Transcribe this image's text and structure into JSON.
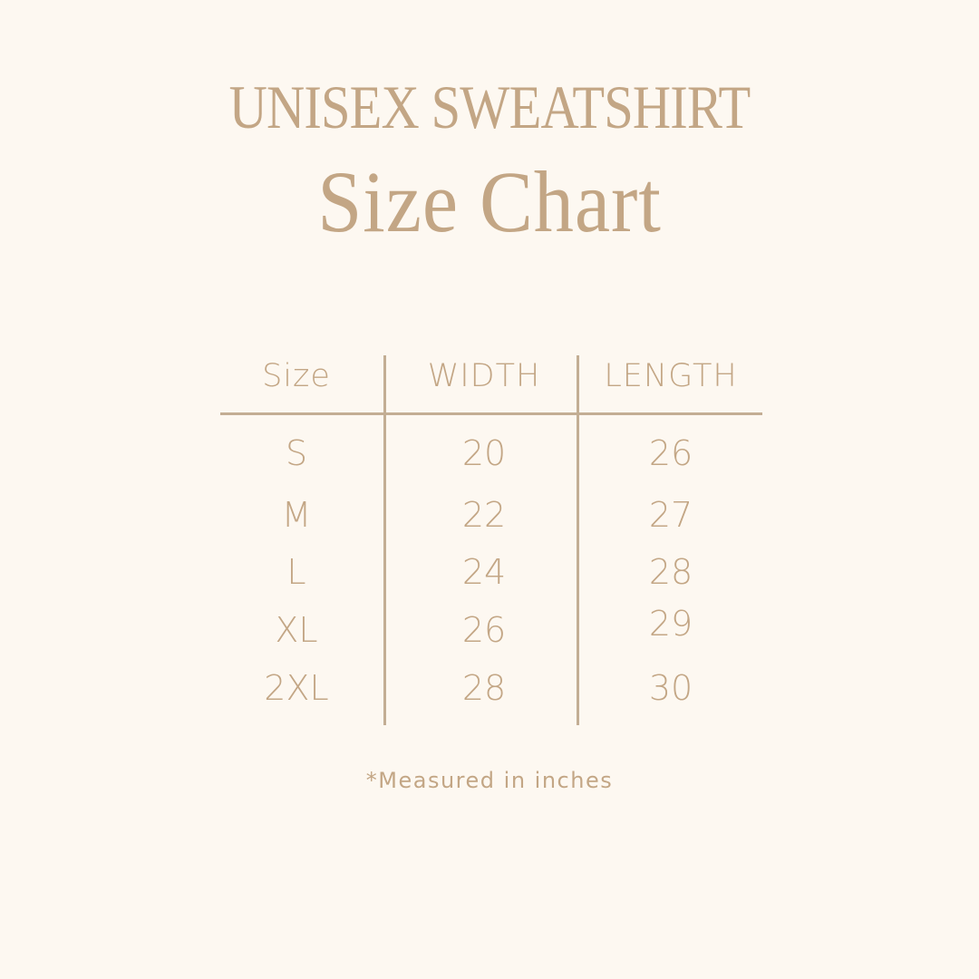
{
  "header": {
    "title": "UNISEX SWEATSHIRT",
    "subtitle": "Size Chart"
  },
  "table": {
    "columns": [
      "Size",
      "WIDTH",
      "LENGTH"
    ],
    "rows": [
      [
        "S",
        "20",
        "26"
      ],
      [
        "M",
        "22",
        "27"
      ],
      [
        "L",
        "24",
        "28"
      ],
      [
        "XL",
        "26",
        "29"
      ],
      [
        "2XL",
        "28",
        "30"
      ]
    ]
  },
  "footer": {
    "note": "*Measured in inches"
  },
  "colors": {
    "background": "#fdf8f1",
    "text": "#c3a685",
    "rule": "#c3ae94"
  }
}
